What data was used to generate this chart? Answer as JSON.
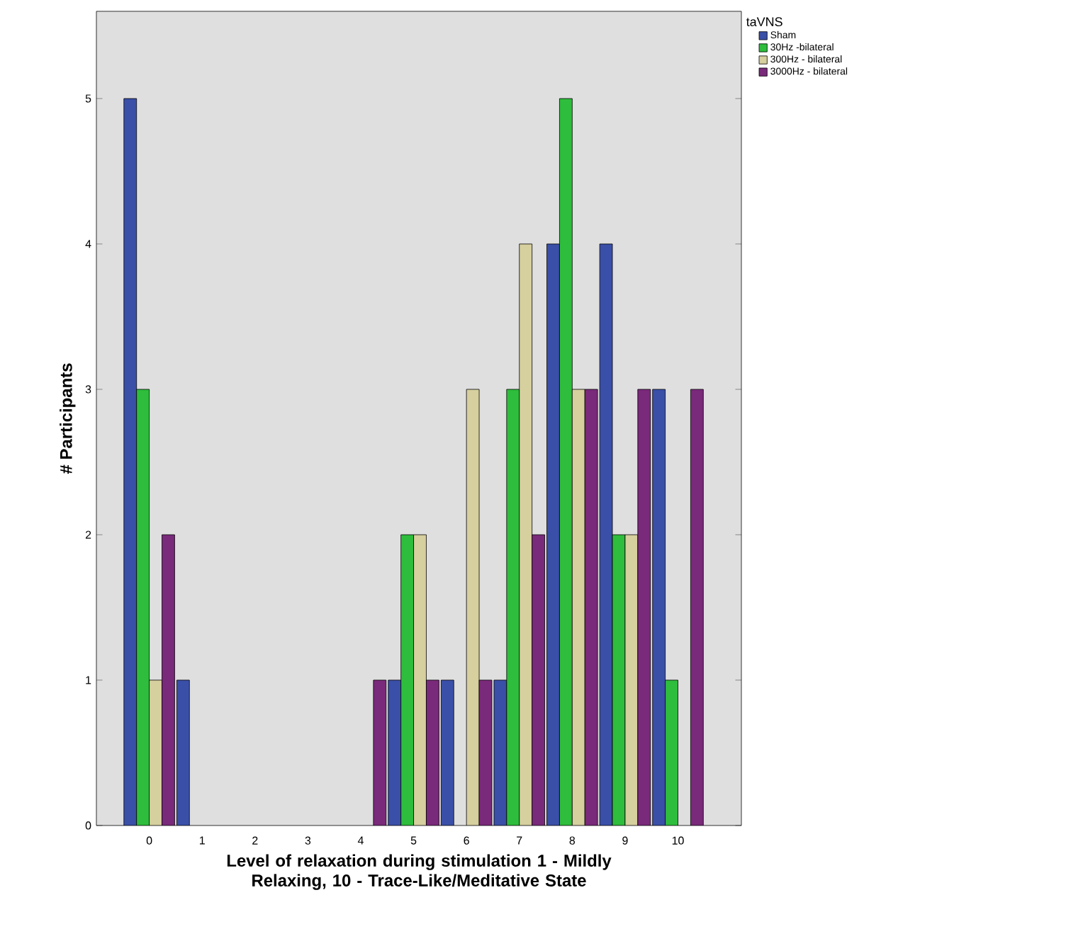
{
  "chart_data": {
    "type": "bar",
    "xlabel": "Level of relaxation during stimulation 1 - Mildly Relaxing, 10 - Trace-Like/Meditative State",
    "ylabel": "# Participants",
    "legend_title": "taVNS",
    "categories": [
      "0",
      "1",
      "2",
      "3",
      "4",
      "5",
      "6",
      "7",
      "8",
      "9",
      "10"
    ],
    "series": [
      {
        "name": "Sham",
        "color": "#3a4fa8",
        "values": [
          5,
          1,
          null,
          null,
          null,
          1,
          1,
          1,
          4,
          4,
          3
        ]
      },
      {
        "name": "30Hz -bilateral",
        "color": "#2ebd3c",
        "values": [
          3,
          null,
          null,
          null,
          null,
          2,
          null,
          3,
          5,
          2,
          1
        ]
      },
      {
        "name": "300Hz - bilateral",
        "color": "#d6cf9e",
        "values": [
          1,
          null,
          null,
          null,
          null,
          2,
          3,
          4,
          3,
          2,
          null
        ]
      },
      {
        "name": "3000Hz - bilateral",
        "color": "#7a2a7a",
        "values": [
          2,
          null,
          null,
          null,
          1,
          1,
          1,
          2,
          3,
          3,
          3
        ]
      }
    ],
    "ylim": [
      0,
      5.6
    ],
    "yticks": [
      0,
      1,
      2,
      3,
      4,
      5
    ],
    "grid": false,
    "legend": "top right"
  }
}
